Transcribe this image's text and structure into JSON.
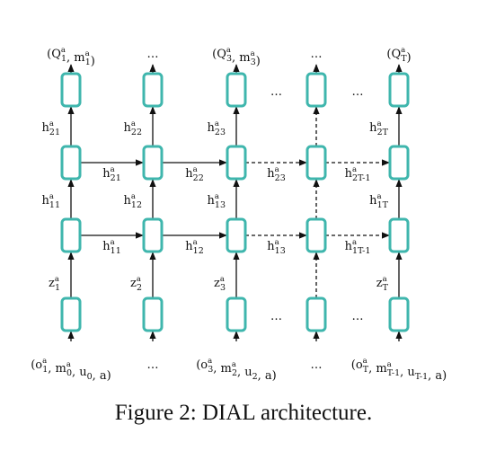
{
  "caption": "Figure 2: DIAL architecture.",
  "colors": {
    "node_stroke": "#3fb6ad",
    "edge": "#111111"
  },
  "top_outputs": [
    {
      "col": 0,
      "parts": [
        [
          "(Q",
          "a",
          "1"
        ],
        [
          ", m",
          "a",
          "1"
        ],
        [
          ")"
        ]
      ]
    },
    {
      "col": 1,
      "parts": [
        [
          "…"
        ]
      ]
    },
    {
      "col": 2,
      "parts": [
        [
          "(Q",
          "a",
          "3"
        ],
        [
          ", m",
          "a",
          "3"
        ],
        [
          ")"
        ]
      ]
    },
    {
      "col": 3,
      "parts": [
        [
          "…"
        ]
      ]
    },
    {
      "col": 4,
      "parts": [
        [
          "(Q",
          "a",
          "T"
        ],
        [
          ")"
        ]
      ]
    }
  ],
  "bottom_inputs": [
    {
      "col": 0,
      "parts": [
        [
          "(o",
          "a",
          "1"
        ],
        [
          ", m",
          "a",
          "0"
        ],
        [
          ", u",
          "",
          "0"
        ],
        [
          ", a)"
        ]
      ]
    },
    {
      "col": 1,
      "parts": [
        [
          "…"
        ]
      ]
    },
    {
      "col": 2,
      "parts": [
        [
          "(o",
          "a",
          "3"
        ],
        [
          ", m",
          "a",
          "2"
        ],
        [
          ", u",
          "",
          "2"
        ],
        [
          ", a)"
        ]
      ]
    },
    {
      "col": 3,
      "parts": [
        [
          "…"
        ]
      ]
    },
    {
      "col": 4,
      "parts": [
        [
          "(o",
          "a",
          "T"
        ],
        [
          ", m",
          "a",
          "T-1"
        ],
        [
          ", u",
          "",
          "T-1"
        ],
        [
          ", a)"
        ]
      ]
    }
  ],
  "vertical_labels": {
    "top_to_out": [
      [
        "h",
        "a",
        "21"
      ],
      [
        "h",
        "a",
        "22"
      ],
      [
        "h",
        "a",
        "23"
      ],
      null,
      [
        "h",
        "a",
        "2T"
      ]
    ],
    "l2_to_l1": [
      [
        "h",
        "a",
        "11"
      ],
      [
        "h",
        "a",
        "12"
      ],
      [
        "h",
        "a",
        "13"
      ],
      null,
      [
        "h",
        "a",
        "1T"
      ]
    ],
    "in_to_l2": [
      [
        "z",
        "a",
        "1"
      ],
      [
        "z",
        "a",
        "2"
      ],
      [
        "z",
        "a",
        "3"
      ],
      null,
      [
        "z",
        "a",
        "T"
      ]
    ]
  },
  "horizontal_labels": {
    "upper": [
      [
        "h",
        "a",
        "21"
      ],
      [
        "h",
        "a",
        "22"
      ],
      [
        "h",
        "a",
        "23"
      ],
      [
        "h",
        "a",
        "2T-1"
      ]
    ],
    "lower": [
      [
        "h",
        "a",
        "11"
      ],
      [
        "h",
        "a",
        "12"
      ],
      [
        "h",
        "a",
        "13"
      ],
      [
        "h",
        "a",
        "1T-1"
      ]
    ]
  }
}
